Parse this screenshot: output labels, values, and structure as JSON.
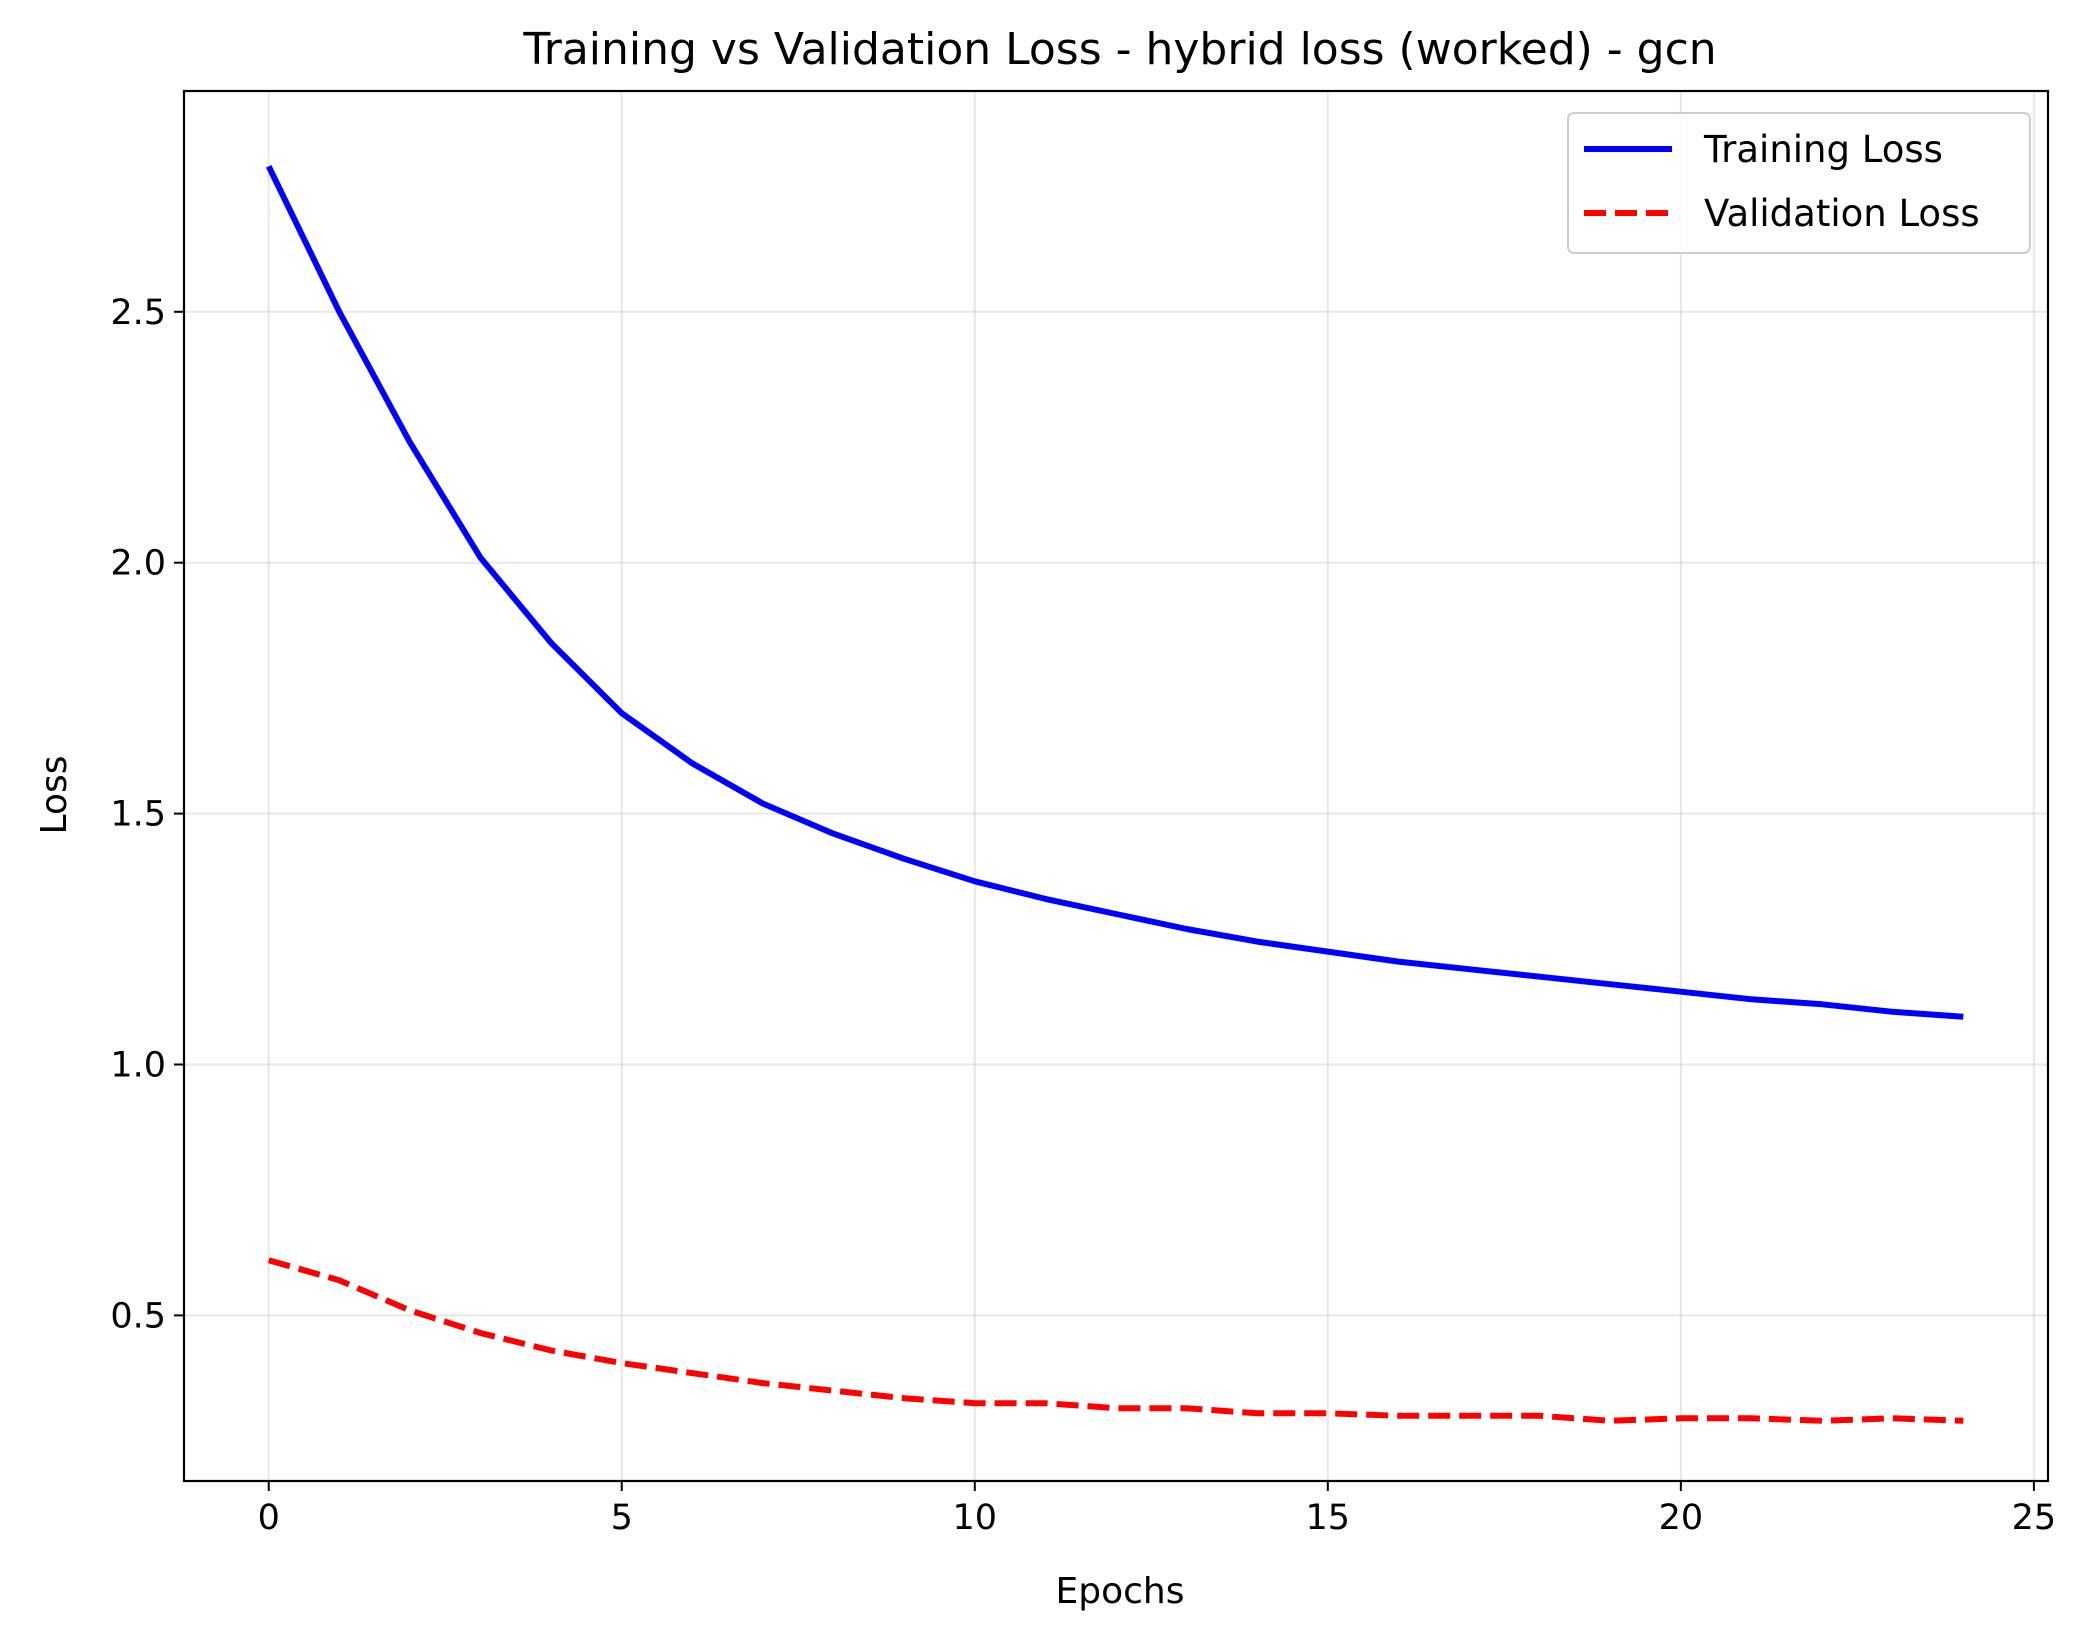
{
  "chart_data": {
    "type": "line",
    "title": "Training vs Validation Loss - hybrid loss (worked) - gcn",
    "xlabel": "Epochs",
    "ylabel": "Loss",
    "xlim": [
      -1.2,
      25.2
    ],
    "ylim": [
      0.17,
      2.94
    ],
    "x_ticks": [
      0,
      5,
      10,
      15,
      20,
      25
    ],
    "x_tick_labels": [
      "0",
      "5",
      "10",
      "15",
      "20",
      "25"
    ],
    "y_ticks": [
      0.5,
      1.0,
      1.5,
      2.0,
      2.5
    ],
    "y_tick_labels": [
      "0.5",
      "1.0",
      "1.5",
      "2.0",
      "2.5"
    ],
    "grid": true,
    "legend_position": "top-right",
    "x": [
      0,
      1,
      2,
      3,
      4,
      5,
      6,
      7,
      8,
      9,
      10,
      11,
      12,
      13,
      14,
      15,
      16,
      17,
      18,
      19,
      20,
      21,
      22,
      23,
      24
    ],
    "series": [
      {
        "name": "Training Loss",
        "color": "#0000ff",
        "style": "solid",
        "values": [
          2.79,
          2.5,
          2.24,
          2.01,
          1.84,
          1.7,
          1.6,
          1.52,
          1.46,
          1.41,
          1.365,
          1.33,
          1.3,
          1.27,
          1.245,
          1.225,
          1.205,
          1.19,
          1.175,
          1.16,
          1.145,
          1.13,
          1.12,
          1.105,
          1.095
        ]
      },
      {
        "name": "Validation Loss",
        "color": "#ff0000",
        "style": "dashed",
        "values": [
          0.61,
          0.57,
          0.51,
          0.465,
          0.43,
          0.405,
          0.385,
          0.365,
          0.35,
          0.335,
          0.325,
          0.325,
          0.315,
          0.315,
          0.305,
          0.305,
          0.3,
          0.3,
          0.3,
          0.29,
          0.295,
          0.295,
          0.29,
          0.295,
          0.29
        ]
      }
    ]
  }
}
